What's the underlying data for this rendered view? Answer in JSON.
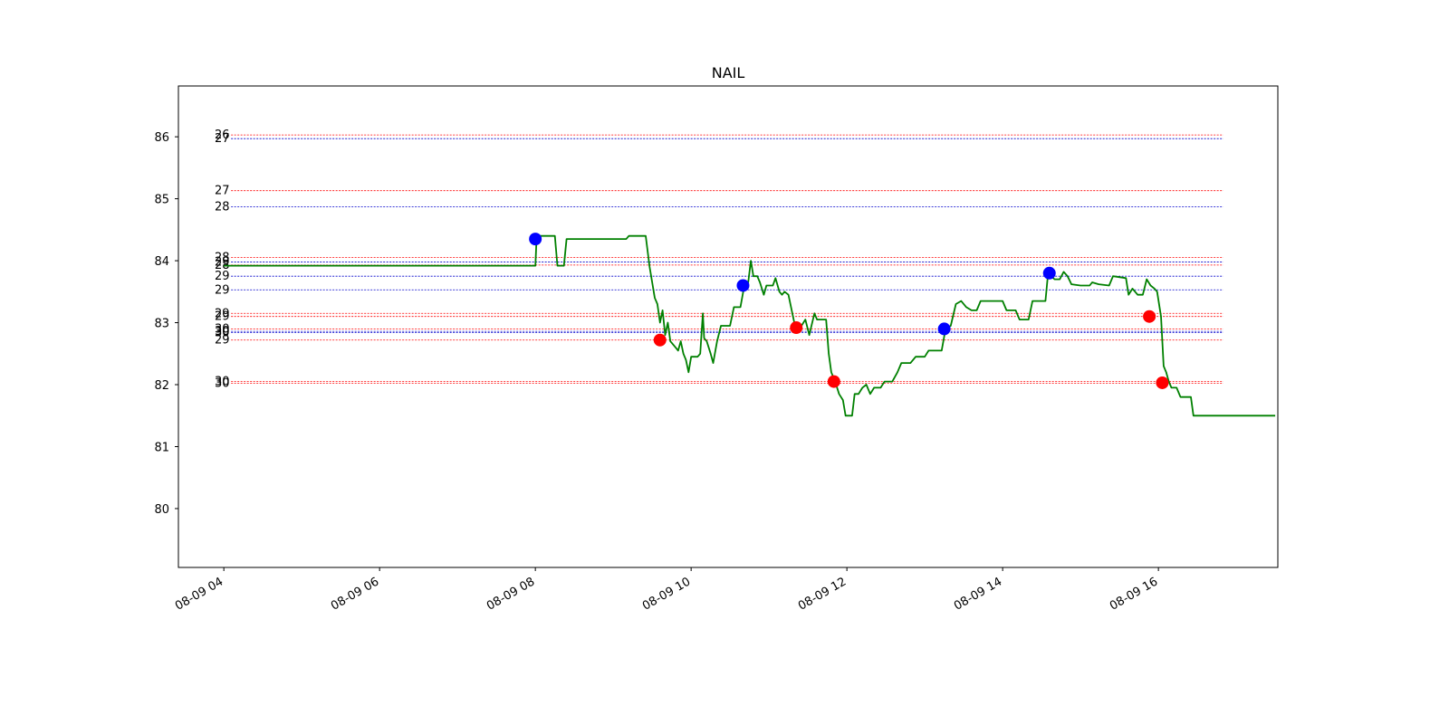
{
  "chart_data": {
    "type": "line",
    "title": "NAIL",
    "xlabel": "",
    "ylabel": "",
    "xlim": [
      "08-09 03:25",
      "08-09 17:32"
    ],
    "ylim": [
      79.05,
      86.82
    ],
    "x_ticks": [
      "08-09 04",
      "08-09 06",
      "08-09 08",
      "08-09 10",
      "08-09 12",
      "08-09 14",
      "08-09 16"
    ],
    "y_ticks": [
      80,
      81,
      82,
      83,
      84,
      85,
      86
    ],
    "grid": false,
    "colors": {
      "price": "#008000",
      "buy": "#0000ff",
      "sell": "#ff0000",
      "level_red": "#ff0000",
      "level_blue": "#0000cc"
    },
    "series": [
      {
        "values": [
          [
            "04:00",
            83.92
          ],
          [
            "08:00",
            83.92
          ],
          [
            "08:01",
            84.4
          ],
          [
            "08:15",
            84.4
          ],
          [
            "08:17",
            83.92
          ],
          [
            "08:22",
            83.92
          ],
          [
            "08:24",
            84.35
          ],
          [
            "09:10",
            84.35
          ],
          [
            "09:12",
            84.4
          ],
          [
            "09:25",
            84.4
          ],
          [
            "09:28",
            83.9
          ],
          [
            "09:32",
            83.4
          ],
          [
            "09:34",
            83.3
          ],
          [
            "09:36",
            83.0
          ],
          [
            "09:38",
            83.2
          ],
          [
            "09:40",
            82.8
          ],
          [
            "09:42",
            83.0
          ],
          [
            "09:44",
            82.7
          ],
          [
            "09:48",
            82.6
          ],
          [
            "09:50",
            82.55
          ],
          [
            "09:52",
            82.7
          ],
          [
            "09:54",
            82.5
          ],
          [
            "09:56",
            82.4
          ],
          [
            "09:58",
            82.2
          ],
          [
            "10:00",
            82.45
          ],
          [
            "10:05",
            82.45
          ],
          [
            "10:07",
            82.5
          ],
          [
            "10:09",
            83.15
          ],
          [
            "10:10",
            82.75
          ],
          [
            "10:12",
            82.7
          ],
          [
            "10:15",
            82.5
          ],
          [
            "10:17",
            82.35
          ],
          [
            "10:20",
            82.7
          ],
          [
            "10:23",
            82.95
          ],
          [
            "10:30",
            82.95
          ],
          [
            "10:33",
            83.25
          ],
          [
            "10:38",
            83.25
          ],
          [
            "10:41",
            83.6
          ],
          [
            "10:44",
            83.65
          ],
          [
            "10:46",
            84.0
          ],
          [
            "10:48",
            83.75
          ],
          [
            "10:51",
            83.75
          ],
          [
            "10:53",
            83.65
          ],
          [
            "10:56",
            83.45
          ],
          [
            "10:58",
            83.6
          ],
          [
            "11:03",
            83.6
          ],
          [
            "11:05",
            83.72
          ],
          [
            "11:08",
            83.5
          ],
          [
            "11:10",
            83.45
          ],
          [
            "11:12",
            83.5
          ],
          [
            "11:15",
            83.45
          ],
          [
            "11:20",
            82.95
          ],
          [
            "11:25",
            82.95
          ],
          [
            "11:28",
            83.05
          ],
          [
            "11:31",
            82.8
          ],
          [
            "11:35",
            83.15
          ],
          [
            "11:37",
            83.05
          ],
          [
            "11:44",
            83.05
          ],
          [
            "11:46",
            82.5
          ],
          [
            "11:48",
            82.2
          ],
          [
            "11:51",
            82.05
          ],
          [
            "11:54",
            81.85
          ],
          [
            "11:57",
            81.75
          ],
          [
            "11:59",
            81.5
          ],
          [
            "12:04",
            81.5
          ],
          [
            "12:06",
            81.85
          ],
          [
            "12:09",
            81.85
          ],
          [
            "12:12",
            81.95
          ],
          [
            "12:15",
            82.0
          ],
          [
            "12:18",
            81.85
          ],
          [
            "12:21",
            81.95
          ],
          [
            "12:26",
            81.95
          ],
          [
            "12:29",
            82.05
          ],
          [
            "12:35",
            82.05
          ],
          [
            "12:39",
            82.2
          ],
          [
            "12:42",
            82.35
          ],
          [
            "12:49",
            82.35
          ],
          [
            "12:53",
            82.45
          ],
          [
            "13:00",
            82.45
          ],
          [
            "13:03",
            82.55
          ],
          [
            "13:13",
            82.55
          ],
          [
            "13:16",
            82.9
          ],
          [
            "13:20",
            82.95
          ],
          [
            "13:24",
            83.3
          ],
          [
            "13:28",
            83.35
          ],
          [
            "13:32",
            83.25
          ],
          [
            "13:36",
            83.2
          ],
          [
            "13:40",
            83.2
          ],
          [
            "13:43",
            83.35
          ],
          [
            "14:00",
            83.35
          ],
          [
            "14:03",
            83.2
          ],
          [
            "14:10",
            83.2
          ],
          [
            "14:13",
            83.05
          ],
          [
            "14:20",
            83.05
          ],
          [
            "14:23",
            83.35
          ],
          [
            "14:33",
            83.35
          ],
          [
            "14:35",
            83.8
          ],
          [
            "14:40",
            83.7
          ],
          [
            "14:44",
            83.7
          ],
          [
            "14:47",
            83.82
          ],
          [
            "14:50",
            83.75
          ],
          [
            "14:53",
            83.62
          ],
          [
            "15:00",
            83.6
          ],
          [
            "15:07",
            83.6
          ],
          [
            "15:09",
            83.65
          ],
          [
            "15:14",
            83.62
          ],
          [
            "15:22",
            83.6
          ],
          [
            "15:25",
            83.75
          ],
          [
            "15:35",
            83.72
          ],
          [
            "15:37",
            83.45
          ],
          [
            "15:40",
            83.55
          ],
          [
            "15:44",
            83.45
          ],
          [
            "15:48",
            83.45
          ],
          [
            "15:51",
            83.7
          ],
          [
            "15:54",
            83.6
          ],
          [
            "15:57",
            83.55
          ],
          [
            "15:59",
            83.5
          ],
          [
            "16:02",
            83.1
          ],
          [
            "16:04",
            82.3
          ],
          [
            "16:06",
            82.2
          ],
          [
            "16:08",
            82.05
          ],
          [
            "16:10",
            81.95
          ],
          [
            "16:14",
            81.95
          ],
          [
            "16:17",
            81.8
          ],
          [
            "16:25",
            81.8
          ],
          [
            "16:27",
            81.5
          ],
          [
            "17:30",
            81.5
          ]
        ]
      }
    ],
    "markers": [
      {
        "kind": "buy",
        "x": "08:00",
        "y": 84.35
      },
      {
        "kind": "sell",
        "x": "09:36",
        "y": 82.72
      },
      {
        "kind": "buy",
        "x": "10:40",
        "y": 83.6
      },
      {
        "kind": "sell",
        "x": "11:21",
        "y": 82.92
      },
      {
        "kind": "sell",
        "x": "11:50",
        "y": 82.05
      },
      {
        "kind": "buy",
        "x": "13:15",
        "y": 82.9
      },
      {
        "kind": "buy",
        "x": "14:36",
        "y": 83.8
      },
      {
        "kind": "sell",
        "x": "15:53",
        "y": 83.1
      },
      {
        "kind": "sell",
        "x": "16:03",
        "y": 82.03
      }
    ],
    "levels": [
      {
        "y": 86.03,
        "color": "red",
        "label": "26"
      },
      {
        "y": 85.97,
        "color": "blue",
        "label": "27"
      },
      {
        "y": 85.13,
        "color": "red",
        "label": "27"
      },
      {
        "y": 84.87,
        "color": "blue",
        "label": "28"
      },
      {
        "y": 84.05,
        "color": "red",
        "label": "28"
      },
      {
        "y": 83.98,
        "color": "blue",
        "label": "29"
      },
      {
        "y": 83.93,
        "color": "red",
        "label": "28"
      },
      {
        "y": 83.75,
        "color": "blue",
        "label": "29"
      },
      {
        "y": 83.53,
        "color": "blue",
        "label": "29"
      },
      {
        "y": 83.15,
        "color": "red",
        "label": "29"
      },
      {
        "y": 83.1,
        "color": "red",
        "label": "29"
      },
      {
        "y": 82.9,
        "color": "red",
        "label": "30"
      },
      {
        "y": 82.86,
        "color": "blue",
        "label": "30"
      },
      {
        "y": 82.84,
        "color": "blue",
        "label": "30"
      },
      {
        "y": 82.72,
        "color": "red",
        "label": "29"
      },
      {
        "y": 82.05,
        "color": "red",
        "label": "30"
      },
      {
        "y": 82.02,
        "color": "red",
        "label": "30"
      }
    ]
  }
}
